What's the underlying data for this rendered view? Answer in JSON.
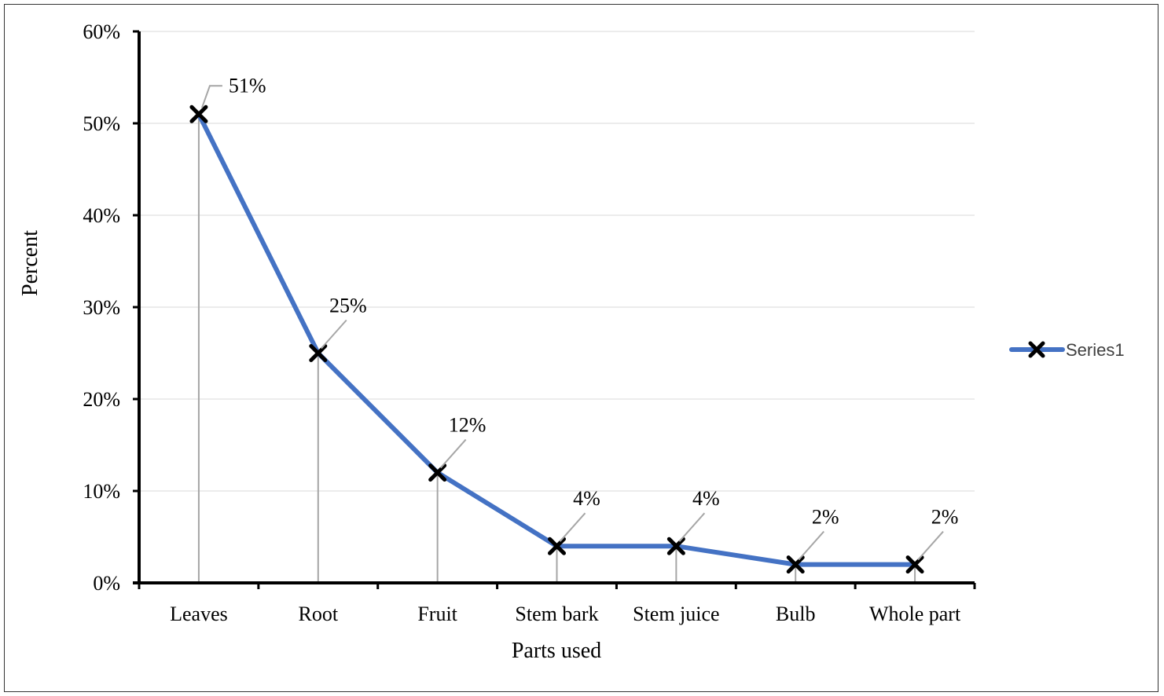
{
  "chart_data": {
    "type": "line",
    "title": "",
    "xlabel": "Parts used",
    "ylabel": "Percent",
    "categories": [
      "Leaves",
      "Root",
      "Fruit",
      "Stem bark",
      "Stem juice",
      "Bulb",
      "Whole part"
    ],
    "series": [
      {
        "name": "Series1",
        "values": [
          51,
          25,
          12,
          4,
          4,
          2,
          2
        ],
        "labels": [
          "51%",
          "25%",
          "12%",
          "4%",
          "4%",
          "2%",
          "2%"
        ],
        "color": "#4472C4",
        "marker": "x"
      }
    ],
    "ylim": [
      0,
      60
    ],
    "yticks": [
      0,
      10,
      20,
      30,
      40,
      50,
      60
    ],
    "ytick_labels": [
      "0%",
      "10%",
      "20%",
      "30%",
      "40%",
      "50%",
      "60%"
    ],
    "grid": true,
    "drop_lines": true,
    "legend_position": "right"
  }
}
